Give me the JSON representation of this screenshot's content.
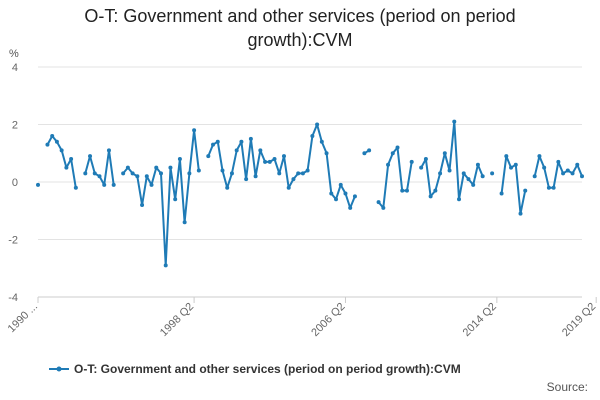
{
  "chart_data": {
    "type": "line",
    "title_line1": "O-T: Government and other services (period on period",
    "title_line2": "growth):CVM",
    "ylabel": "%",
    "ylim": [
      -4,
      4
    ],
    "yticks": [
      "4",
      "2",
      "0",
      "-2",
      "-4"
    ],
    "x_tick_labels": [
      "1990 ...",
      "1998 Q2",
      "2006 Q2",
      "2014 Q2",
      "2019 Q2"
    ],
    "x_tick_index": [
      0,
      33,
      65,
      97,
      118
    ],
    "grid": "horizontal",
    "legend_position": "bottom",
    "series": [
      {
        "name": "O-T: Government and other services (period on period growth):CVM",
        "color": "#1f7bb6",
        "values": [
          -0.1,
          null,
          1.3,
          1.6,
          1.4,
          1.1,
          0.5,
          0.8,
          -0.2,
          null,
          0.3,
          0.9,
          0.3,
          0.2,
          -0.1,
          1.1,
          -0.1,
          null,
          0.3,
          0.5,
          0.3,
          0.2,
          -0.8,
          0.2,
          -0.1,
          0.5,
          0.3,
          -2.9,
          0.5,
          -0.6,
          0.8,
          -1.4,
          0.3,
          1.8,
          0.4,
          null,
          0.9,
          1.3,
          1.4,
          0.4,
          -0.2,
          0.3,
          1.1,
          1.4,
          0.1,
          1.5,
          0.2,
          1.1,
          0.7,
          0.7,
          0.8,
          0.3,
          0.9,
          -0.2,
          0.1,
          0.3,
          0.3,
          0.4,
          1.6,
          2.0,
          1.4,
          1.0,
          -0.4,
          -0.6,
          -0.1,
          -0.4,
          -0.9,
          -0.5,
          null,
          1.0,
          1.1,
          null,
          -0.7,
          -0.9,
          0.6,
          1.0,
          1.2,
          -0.3,
          -0.3,
          0.7,
          null,
          0.5,
          0.8,
          -0.5,
          -0.3,
          0.3,
          1.0,
          0.4,
          2.1,
          -0.6,
          0.3,
          0.1,
          -0.1,
          0.6,
          0.2,
          null,
          0.3,
          null,
          -0.4,
          0.9,
          0.5,
          0.6,
          -1.1,
          -0.3,
          null,
          0.2,
          0.9,
          0.5,
          -0.2,
          -0.2,
          0.7,
          0.3,
          0.4,
          0.3,
          0.6,
          0.2
        ]
      }
    ]
  },
  "source_label": "Source:"
}
